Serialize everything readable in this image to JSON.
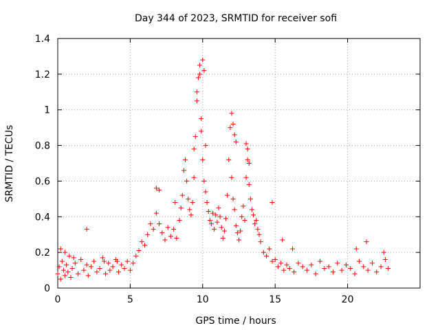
{
  "chart_data": {
    "type": "scatter",
    "title": "Day 344 of 2023, SRMTID for receiver sofi",
    "xlabel": "GPS time / hours",
    "ylabel": "SRMTID / TECUs",
    "xlim": [
      0,
      25
    ],
    "ylim": [
      0,
      1.4
    ],
    "xticks": [
      0,
      5,
      10,
      15,
      20
    ],
    "yticks": [
      0,
      0.2,
      0.4,
      0.6,
      0.8,
      1,
      1.2,
      1.4
    ],
    "xtick_labels": [
      "0",
      "5",
      "10",
      "15",
      "20"
    ],
    "ytick_labels": [
      "0",
      "0.2",
      "0.4",
      "0.6",
      "0.8",
      "1",
      "1.2",
      "1.4"
    ],
    "grid": true,
    "marker": "+",
    "series": [
      {
        "name": "SRMTID",
        "color": "#ff0000",
        "x": [
          0.0,
          0.1,
          0.2,
          0.3,
          0.4,
          0.5,
          0.6,
          0.7,
          0.8,
          0.9,
          1.0,
          1.2,
          1.4,
          1.6,
          1.8,
          2.0,
          2.1,
          2.3,
          2.5,
          2.7,
          2.9,
          3.1,
          3.3,
          3.5,
          3.6,
          3.8,
          4.0,
          4.2,
          4.4,
          4.6,
          4.8,
          5.0,
          5.2,
          5.4,
          5.6,
          5.8,
          6.0,
          6.2,
          6.4,
          6.6,
          6.8,
          7.0,
          7.2,
          7.4,
          7.6,
          7.8,
          8.0,
          8.2,
          8.4,
          8.5,
          8.6,
          8.7,
          8.8,
          8.9,
          9.0,
          9.1,
          9.2,
          9.3,
          9.4,
          9.5,
          9.6,
          9.7,
          9.8,
          9.9,
          10.0,
          10.1,
          10.2,
          10.3,
          10.4,
          10.5,
          10.6,
          10.7,
          10.8,
          10.9,
          11.0,
          11.1,
          11.2,
          11.3,
          11.4,
          11.5,
          11.6,
          11.7,
          11.8,
          11.9,
          12.0,
          12.1,
          12.2,
          12.3,
          12.4,
          12.5,
          12.6,
          12.7,
          12.8,
          12.9,
          13.0,
          13.1,
          13.2,
          13.3,
          13.4,
          13.5,
          13.6,
          13.7,
          13.8,
          13.9,
          14.0,
          14.2,
          14.4,
          14.6,
          14.8,
          15.0,
          15.2,
          15.4,
          15.6,
          15.8,
          16.0,
          16.3,
          16.6,
          16.9,
          17.2,
          17.5,
          17.8,
          18.1,
          18.4,
          18.7,
          19.0,
          19.3,
          19.6,
          19.9,
          20.2,
          20.5,
          20.8,
          21.1,
          21.4,
          21.7,
          22.0,
          22.3,
          22.6,
          22.8,
          0.2,
          0.5,
          1.1,
          2.0,
          3.2,
          4.1,
          6.8,
          7.0,
          8.1,
          9.6,
          9.8,
          10.0,
          10.1,
          9.4,
          9.9,
          10.2,
          12.0,
          12.1,
          12.2,
          12.3,
          13.0,
          13.1,
          13.2,
          14.8,
          15.5,
          16.2,
          20.6,
          21.3,
          22.5
        ],
        "y": [
          0.08,
          0.12,
          0.05,
          0.15,
          0.1,
          0.07,
          0.13,
          0.09,
          0.18,
          0.06,
          0.11,
          0.14,
          0.08,
          0.16,
          0.1,
          0.13,
          0.07,
          0.12,
          0.15,
          0.09,
          0.11,
          0.17,
          0.08,
          0.14,
          0.1,
          0.12,
          0.16,
          0.09,
          0.13,
          0.11,
          0.15,
          0.1,
          0.14,
          0.18,
          0.21,
          0.26,
          0.24,
          0.3,
          0.36,
          0.33,
          0.42,
          0.36,
          0.31,
          0.27,
          0.34,
          0.29,
          0.33,
          0.28,
          0.38,
          0.45,
          0.52,
          0.66,
          0.72,
          0.6,
          0.5,
          0.44,
          0.41,
          0.48,
          0.62,
          0.85,
          1.05,
          1.18,
          1.25,
          0.95,
          0.72,
          0.6,
          0.54,
          0.48,
          0.43,
          0.38,
          0.36,
          0.42,
          0.33,
          0.41,
          0.37,
          0.45,
          0.4,
          0.34,
          0.28,
          0.32,
          0.39,
          0.52,
          0.72,
          0.9,
          0.62,
          0.5,
          0.44,
          0.35,
          0.31,
          0.27,
          0.32,
          0.4,
          0.46,
          0.38,
          0.62,
          0.72,
          0.58,
          0.5,
          0.44,
          0.41,
          0.36,
          0.38,
          0.33,
          0.3,
          0.26,
          0.2,
          0.18,
          0.22,
          0.15,
          0.16,
          0.12,
          0.14,
          0.1,
          0.13,
          0.11,
          0.09,
          0.14,
          0.12,
          0.1,
          0.13,
          0.08,
          0.15,
          0.11,
          0.12,
          0.09,
          0.14,
          0.1,
          0.13,
          0.11,
          0.08,
          0.15,
          0.12,
          0.1,
          0.14,
          0.09,
          0.12,
          0.16,
          0.11,
          0.22,
          0.2,
          0.17,
          0.33,
          0.15,
          0.15,
          0.56,
          0.55,
          0.48,
          1.1,
          1.2,
          1.28,
          1.22,
          0.78,
          0.88,
          0.8,
          0.98,
          0.92,
          0.86,
          0.82,
          0.81,
          0.78,
          0.7,
          0.48,
          0.27,
          0.22,
          0.22,
          0.26,
          0.2
        ]
      }
    ]
  }
}
